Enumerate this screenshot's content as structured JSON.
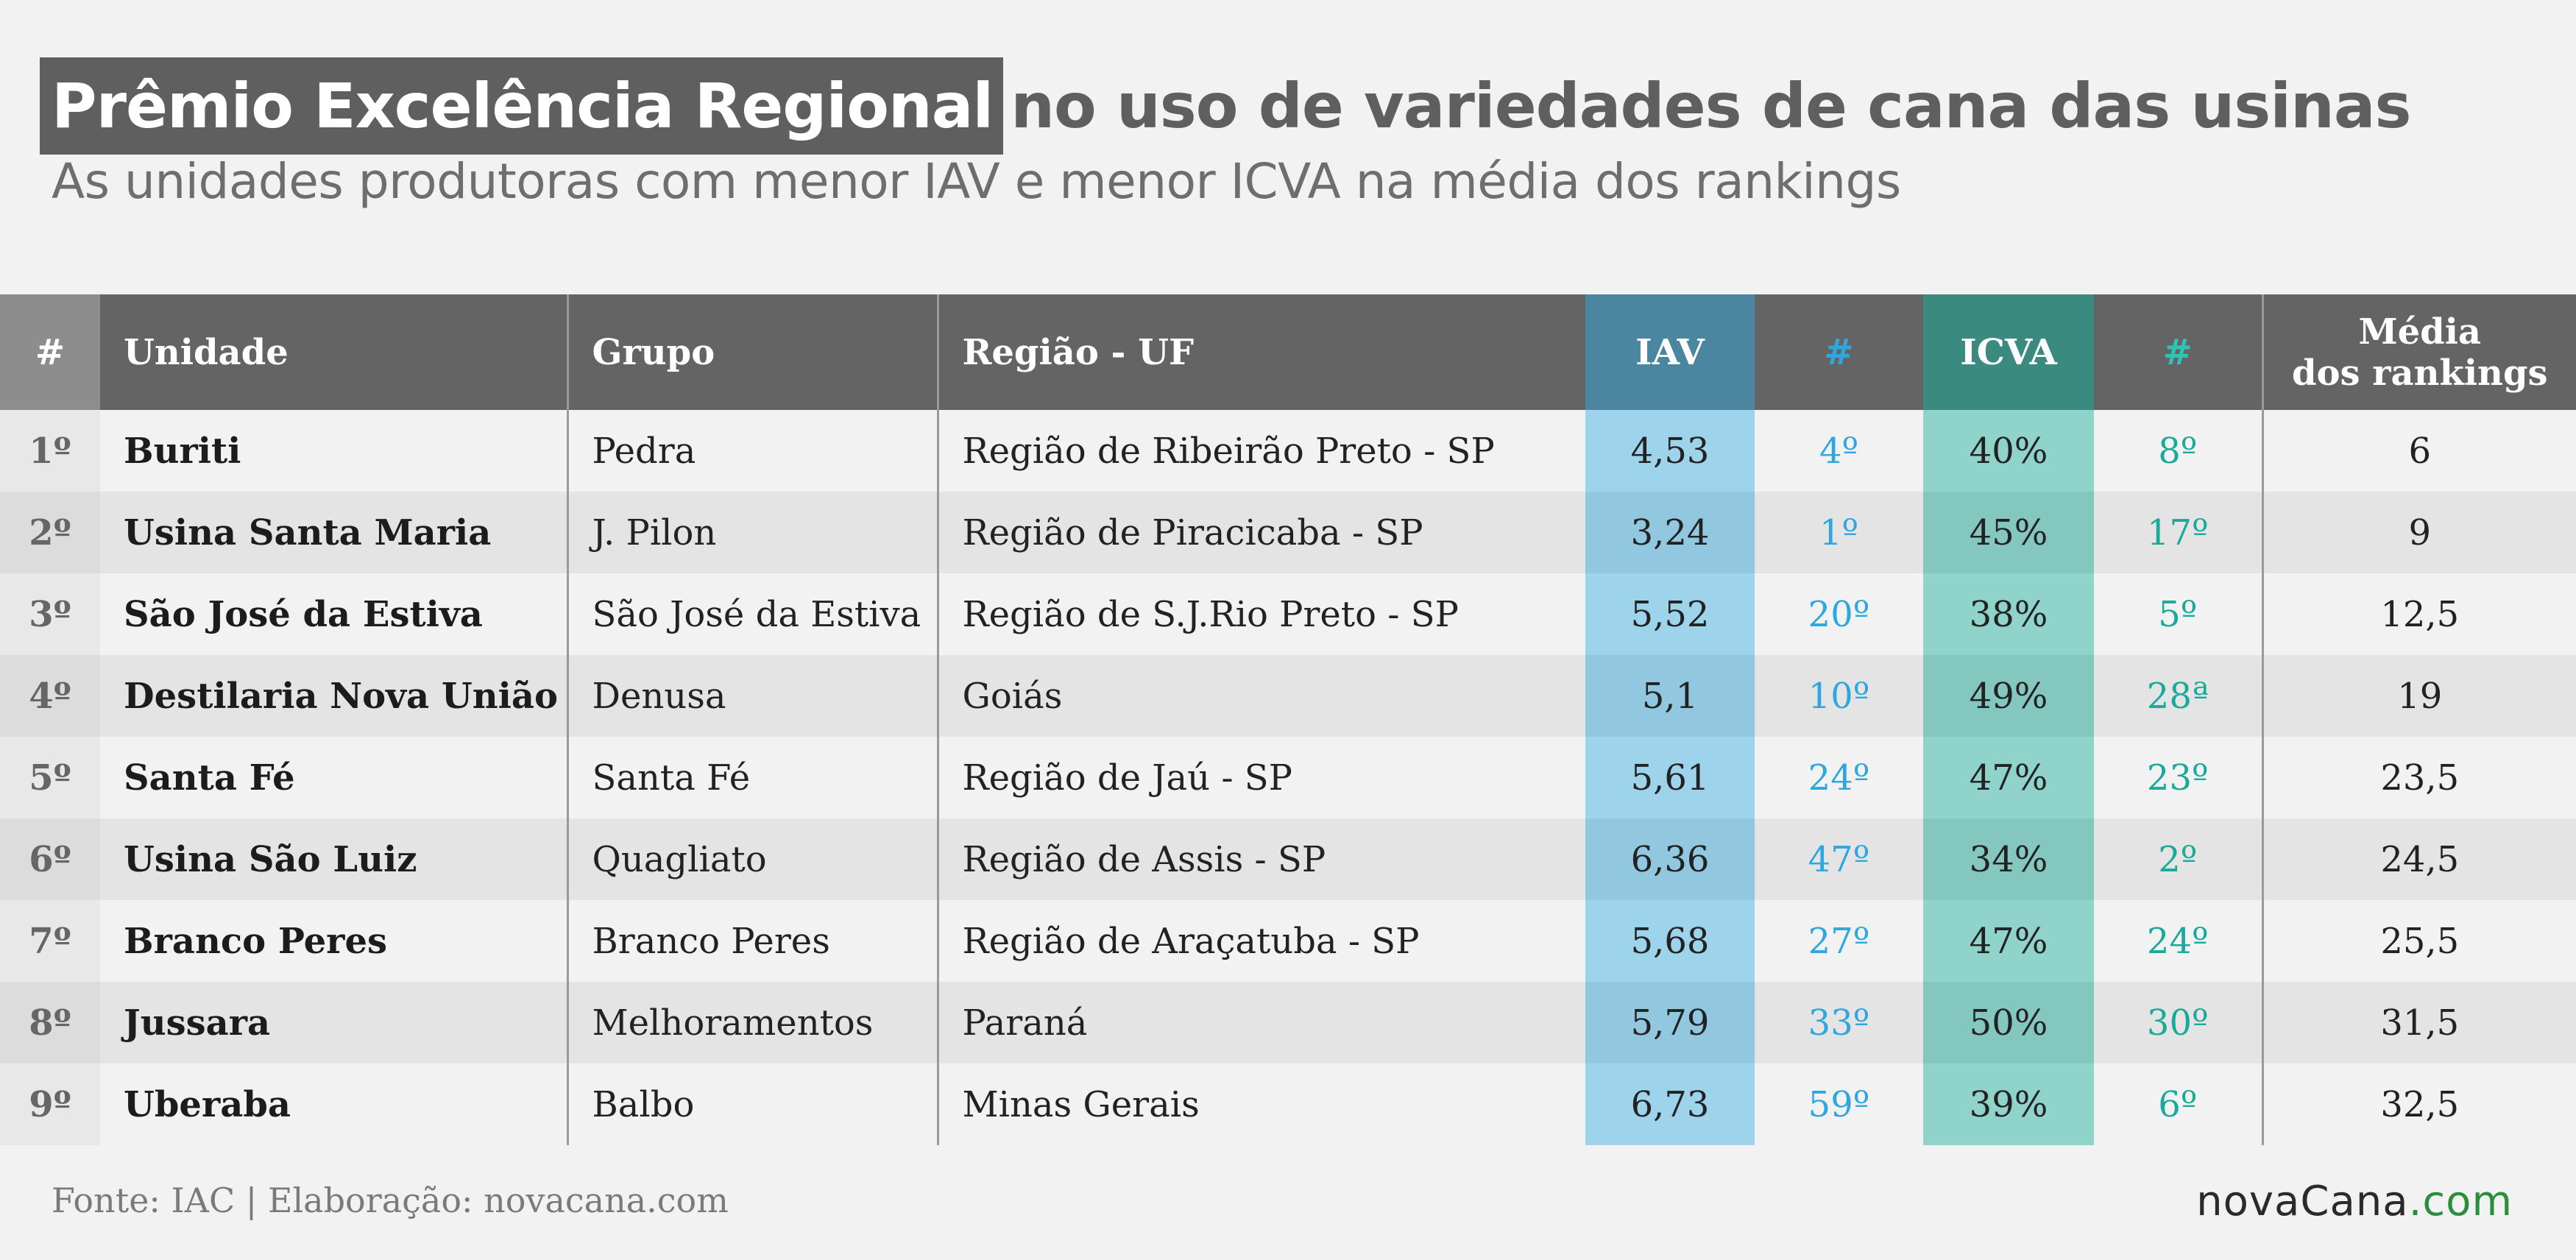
{
  "header": {
    "title_highlight": "Prêmio Excelência Regional",
    "title_rest": "no uso de variedades de cana das usinas",
    "subtitle": "As unidades produtoras com menor IAV e menor ICVA na média dos rankings"
  },
  "table": {
    "columns": {
      "num": "#",
      "unidade": "Unidade",
      "grupo": "Grupo",
      "regiao": "Região - UF",
      "iav": "IAV",
      "iav_rank": "#",
      "icva": "ICVA",
      "icva_rank": "#",
      "media_line1": "Média",
      "media_line2": "dos rankings"
    },
    "rows": [
      {
        "pos": "1º",
        "unidade": "Buriti",
        "grupo": "Pedra",
        "regiao": "Região de Ribeirão Preto - SP",
        "iav": "4,53",
        "iav_rank": "4º",
        "icva": "40%",
        "icva_rank": "8º",
        "media": "6"
      },
      {
        "pos": "2º",
        "unidade": "Usina Santa Maria",
        "grupo": "J. Pilon",
        "regiao": "Região de Piracicaba - SP",
        "iav": "3,24",
        "iav_rank": "1º",
        "icva": "45%",
        "icva_rank": "17º",
        "media": "9"
      },
      {
        "pos": "3º",
        "unidade": "São José da Estiva",
        "grupo": "São José da Estiva",
        "regiao": "Região de S.J.Rio Preto - SP",
        "iav": "5,52",
        "iav_rank": "20º",
        "icva": "38%",
        "icva_rank": "5º",
        "media": "12,5"
      },
      {
        "pos": "4º",
        "unidade": "Destilaria Nova União",
        "grupo": "Denusa",
        "regiao": "Goiás",
        "iav": "5,1",
        "iav_rank": "10º",
        "icva": "49%",
        "icva_rank": "28ª",
        "media": "19"
      },
      {
        "pos": "5º",
        "unidade": "Santa Fé",
        "grupo": "Santa Fé",
        "regiao": "Região de Jaú - SP",
        "iav": "5,61",
        "iav_rank": "24º",
        "icva": "47%",
        "icva_rank": "23º",
        "media": "23,5"
      },
      {
        "pos": "6º",
        "unidade": "Usina São Luiz",
        "grupo": "Quagliato",
        "regiao": "Região de Assis - SP",
        "iav": "6,36",
        "iav_rank": "47º",
        "icva": "34%",
        "icva_rank": "2º",
        "media": "24,5"
      },
      {
        "pos": "7º",
        "unidade": "Branco Peres",
        "grupo": "Branco Peres",
        "regiao": "Região de Araçatuba - SP",
        "iav": "5,68",
        "iav_rank": "27º",
        "icva": "47%",
        "icva_rank": "24º",
        "media": "25,5"
      },
      {
        "pos": "8º",
        "unidade": "Jussara",
        "grupo": "Melhoramentos",
        "regiao": "Paraná",
        "iav": "5,79",
        "iav_rank": "33º",
        "icva": "50%",
        "icva_rank": "30º",
        "media": "31,5"
      },
      {
        "pos": "9º",
        "unidade": "Uberaba",
        "grupo": "Balbo",
        "regiao": "Minas Gerais",
        "iav": "6,73",
        "iav_rank": "59º",
        "icva": "39%",
        "icva_rank": "6º",
        "media": "32,5"
      }
    ]
  },
  "footer": {
    "source": "Fonte: IAC | Elaboração: novacana.com",
    "logo_part1": "novaCana",
    "logo_part2": ".com"
  }
}
